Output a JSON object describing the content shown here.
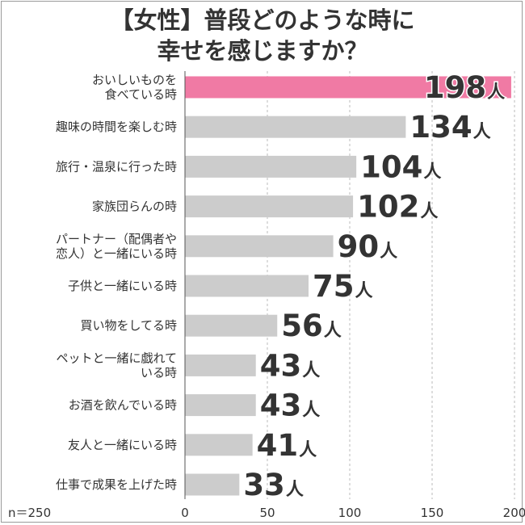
{
  "title_lines": [
    "【女性】普段どのような時に",
    "幸せを感じますか？"
  ],
  "note": "n＝250",
  "unit": "人",
  "colors": {
    "highlight": "#f07aa4",
    "bar": "#cccccc",
    "text": "#333333",
    "grid": "#bbbbbb"
  },
  "chart_data": {
    "type": "bar",
    "orientation": "horizontal",
    "title": "【女性】普段どのような時に幸せを感じますか？",
    "categories": [
      [
        "おいしいものを",
        "食べている時"
      ],
      [
        "趣味の時間を楽しむ時"
      ],
      [
        "旅行・温泉に行った時"
      ],
      [
        "家族団らんの時"
      ],
      [
        "パートナー（配偶者や",
        "恋人）と一緒にいる時"
      ],
      [
        "子供と一緒にいる時"
      ],
      [
        "買い物をしてる時"
      ],
      [
        "ペットと一緒に戯れて",
        "いる時"
      ],
      [
        "お酒を飲んでいる時"
      ],
      [
        "友人と一緒にいる時"
      ],
      [
        "仕事で成果を上げた時"
      ]
    ],
    "values": [
      198,
      134,
      104,
      102,
      90,
      75,
      56,
      43,
      43,
      41,
      33
    ],
    "xlim": [
      0,
      200
    ],
    "xticks": [
      0,
      50,
      100,
      150,
      200
    ],
    "grid": "vertical dashed",
    "highlight_index": 0
  }
}
